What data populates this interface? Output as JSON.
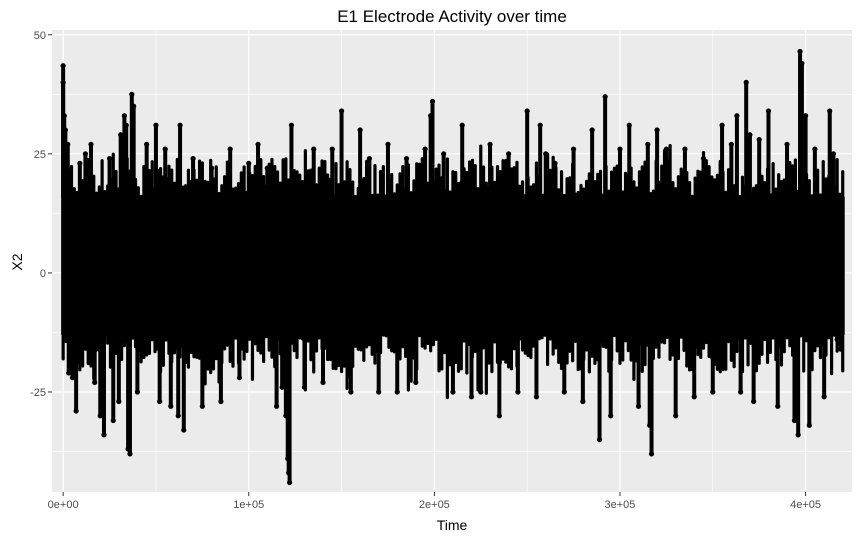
{
  "chart_data": {
    "type": "scatter",
    "title": "E1 Electrode Activity over time",
    "xlabel": "Time",
    "ylabel": "X2",
    "xlim": [
      -6000,
      425000
    ],
    "ylim": [
      -46,
      51
    ],
    "x_ticks": [
      {
        "value": 0,
        "label": "0e+00"
      },
      {
        "value": 100000,
        "label": "1e+05"
      },
      {
        "value": 200000,
        "label": "2e+05"
      },
      {
        "value": 300000,
        "label": "3e+05"
      },
      {
        "value": 400000,
        "label": "4e+05"
      }
    ],
    "y_ticks": [
      {
        "value": -25,
        "label": "-25"
      },
      {
        "value": 0,
        "label": "0"
      },
      {
        "value": 25,
        "label": "25"
      },
      {
        "value": 50,
        "label": "50"
      }
    ],
    "grid": true,
    "legend": "none",
    "point_color": "#000000",
    "panel_color": "#ebebeb",
    "grid_color": "#ffffff",
    "band": {
      "x_range": [
        0,
        420000
      ],
      "core": [
        -13,
        16
      ]
    },
    "points": [
      [
        0,
        43.5
      ],
      [
        0,
        40
      ],
      [
        600,
        33
      ],
      [
        1200,
        30
      ],
      [
        2500,
        27
      ],
      [
        3000,
        -21
      ],
      [
        5000,
        -22
      ],
      [
        7000,
        -29
      ],
      [
        9000,
        23
      ],
      [
        12000,
        25
      ],
      [
        15000,
        27
      ],
      [
        17000,
        -23
      ],
      [
        20000,
        -30
      ],
      [
        22000,
        -34
      ],
      [
        25000,
        24
      ],
      [
        27000,
        -31
      ],
      [
        30000,
        -27
      ],
      [
        31000,
        29
      ],
      [
        33000,
        33
      ],
      [
        34000,
        31
      ],
      [
        35000,
        -37
      ],
      [
        36000,
        -38
      ],
      [
        37000,
        37.5
      ],
      [
        38000,
        35
      ],
      [
        40000,
        -25
      ],
      [
        45000,
        27
      ],
      [
        50000,
        31
      ],
      [
        52000,
        -27
      ],
      [
        55000,
        26
      ],
      [
        58000,
        -28
      ],
      [
        62000,
        -30
      ],
      [
        63000,
        31
      ],
      [
        65000,
        -33
      ],
      [
        70000,
        24
      ],
      [
        75000,
        -28
      ],
      [
        80000,
        22
      ],
      [
        85000,
        -27
      ],
      [
        90000,
        26
      ],
      [
        95000,
        -22
      ],
      [
        100000,
        23
      ],
      [
        105000,
        27
      ],
      [
        110000,
        22
      ],
      [
        115000,
        -28
      ],
      [
        118000,
        -24
      ],
      [
        120000,
        -30
      ],
      [
        121000,
        -39
      ],
      [
        121500,
        -42
      ],
      [
        122000,
        -44
      ],
      [
        123000,
        31
      ],
      [
        130000,
        -24
      ],
      [
        135000,
        26
      ],
      [
        140000,
        -23
      ],
      [
        145000,
        26
      ],
      [
        150000,
        34
      ],
      [
        155000,
        -25
      ],
      [
        160000,
        30
      ],
      [
        165000,
        24
      ],
      [
        170000,
        -25
      ],
      [
        175000,
        27
      ],
      [
        180000,
        -25
      ],
      [
        185000,
        24
      ],
      [
        190000,
        -23
      ],
      [
        195000,
        26
      ],
      [
        198000,
        33
      ],
      [
        199000,
        36
      ],
      [
        205000,
        25
      ],
      [
        210000,
        -25
      ],
      [
        215000,
        31
      ],
      [
        220000,
        -26
      ],
      [
        225000,
        -25
      ],
      [
        230000,
        27
      ],
      [
        235000,
        -30
      ],
      [
        240000,
        25
      ],
      [
        245000,
        -25
      ],
      [
        250000,
        34
      ],
      [
        255000,
        -26
      ],
      [
        257000,
        31
      ],
      [
        260000,
        25
      ],
      [
        265000,
        23
      ],
      [
        270000,
        -25
      ],
      [
        275000,
        26
      ],
      [
        280000,
        -27
      ],
      [
        285000,
        30
      ],
      [
        289000,
        -35
      ],
      [
        292000,
        37
      ],
      [
        295000,
        -30
      ],
      [
        300000,
        26
      ],
      [
        305000,
        31
      ],
      [
        310000,
        -28
      ],
      [
        315000,
        27
      ],
      [
        316000,
        -32
      ],
      [
        317000,
        -38
      ],
      [
        320000,
        30
      ],
      [
        325000,
        26
      ],
      [
        330000,
        -30
      ],
      [
        335000,
        26
      ],
      [
        340000,
        -26
      ],
      [
        345000,
        24
      ],
      [
        350000,
        -25
      ],
      [
        355000,
        31
      ],
      [
        360000,
        27
      ],
      [
        363000,
        33
      ],
      [
        365000,
        -25
      ],
      [
        368000,
        40
      ],
      [
        370000,
        29
      ],
      [
        372000,
        -27
      ],
      [
        375000,
        28
      ],
      [
        380000,
        34
      ],
      [
        385000,
        -28
      ],
      [
        390000,
        27
      ],
      [
        394000,
        -31
      ],
      [
        396000,
        -34
      ],
      [
        397000,
        46.5
      ],
      [
        398000,
        44
      ],
      [
        400000,
        33
      ],
      [
        402000,
        -32
      ],
      [
        405000,
        26
      ],
      [
        410000,
        -26
      ],
      [
        413000,
        34
      ],
      [
        415000,
        25
      ],
      [
        417000,
        -14
      ],
      [
        418000,
        12
      ],
      [
        419000,
        -16
      ],
      [
        419500,
        10
      ]
    ]
  }
}
